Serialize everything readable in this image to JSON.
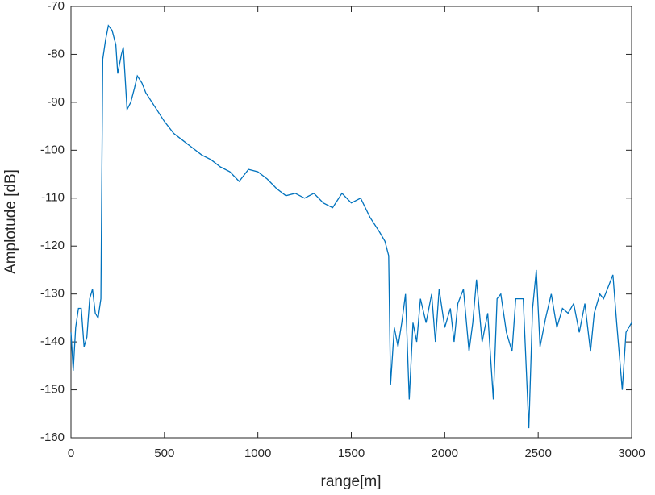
{
  "chart_data": {
    "type": "line",
    "x_label": "range[m]",
    "y_label": "Amplotude [dB]",
    "xlim": [
      0,
      3000
    ],
    "ylim": [
      -160,
      -70
    ],
    "xticks": [
      0,
      500,
      1000,
      1500,
      2000,
      2500,
      3000
    ],
    "yticks": [
      -160,
      -150,
      -140,
      -130,
      -120,
      -110,
      -100,
      -90,
      -80,
      -70
    ],
    "grid": false,
    "x": [
      0,
      12,
      25,
      40,
      55,
      70,
      85,
      100,
      115,
      130,
      145,
      160,
      170,
      185,
      200,
      220,
      240,
      250,
      270,
      280,
      300,
      320,
      340,
      355,
      380,
      400,
      450,
      500,
      550,
      600,
      650,
      700,
      750,
      800,
      850,
      900,
      950,
      1000,
      1050,
      1100,
      1150,
      1200,
      1250,
      1300,
      1350,
      1400,
      1450,
      1500,
      1550,
      1600,
      1650,
      1680,
      1700,
      1710,
      1730,
      1750,
      1770,
      1790,
      1810,
      1830,
      1850,
      1870,
      1900,
      1930,
      1950,
      1970,
      2000,
      2030,
      2050,
      2070,
      2100,
      2130,
      2150,
      2170,
      2200,
      2230,
      2260,
      2280,
      2300,
      2330,
      2360,
      2380,
      2420,
      2450,
      2470,
      2490,
      2510,
      2540,
      2570,
      2600,
      2630,
      2660,
      2690,
      2720,
      2750,
      2780,
      2800,
      2830,
      2850,
      2880,
      2900,
      2920,
      2950,
      2970,
      3000
    ],
    "series": [
      {
        "color": "#0072BD",
        "values": [
          -138,
          -146,
          -137,
          -133,
          -133,
          -141,
          -139,
          -131,
          -129,
          -134,
          -135,
          -131,
          -81,
          -77,
          -74,
          -75,
          -78,
          -84,
          -80,
          -78.5,
          -91.5,
          -90,
          -87,
          -84.5,
          -86,
          -88,
          -91,
          -94,
          -96.5,
          -98,
          -99.5,
          -101,
          -102,
          -103.5,
          -104.5,
          -106.5,
          -104,
          -104.5,
          -106,
          -108,
          -109.5,
          -109,
          -110,
          -109,
          -111,
          -112,
          -109,
          -111,
          -110,
          -114,
          -117,
          -119,
          -122,
          -149,
          -137,
          -141,
          -136,
          -130,
          -152,
          -136,
          -140,
          -131,
          -136,
          -130,
          -140,
          -129,
          -137,
          -133,
          -140,
          -132,
          -129,
          -142,
          -136,
          -127,
          -140,
          -134,
          -152,
          -131,
          -130,
          -138,
          -142,
          -131,
          -131,
          -158,
          -133,
          -125,
          -141,
          -135,
          -130,
          -137,
          -133,
          -134,
          -132,
          -138,
          -132,
          -142,
          -134,
          -130,
          -131,
          -128,
          -126,
          -136,
          -150,
          -138,
          -136
        ]
      }
    ]
  }
}
